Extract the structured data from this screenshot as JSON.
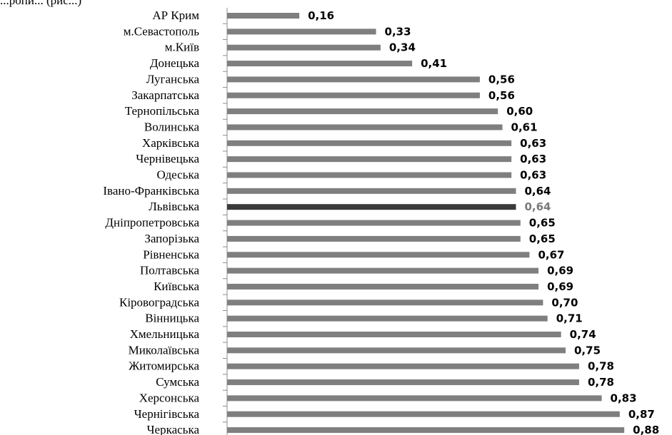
{
  "header_fragment": "...ропи... (рис...)",
  "chart_data": {
    "type": "bar",
    "orientation": "horizontal",
    "title": "",
    "xlabel": "",
    "ylabel": "",
    "xlim": [
      0,
      1
    ],
    "grid": false,
    "highlight_category": "Львівська",
    "colors": {
      "bar": "#7f7f7f",
      "bar_highlight": "#3a3a3a",
      "value_highlight": "#7a7a7a",
      "axis": "#8c8c8c"
    },
    "categories": [
      "АР Крим",
      "м.Севастополь",
      "м.Київ",
      "Донецька",
      "Луганська",
      "Закарпатська",
      "Тернопільська",
      "Волинська",
      "Харківська",
      "Чернівецька",
      "Одеська",
      "Івано-Франківська",
      "Львівська",
      "Дніпропетровська",
      "Запорізька",
      "Рівненська",
      "Полтавська",
      "Київська",
      "Кіровоградська",
      "Вінницька",
      "Хмельницька",
      "Миколаївська",
      "Житомирська",
      "Сумська",
      "Херсонська",
      "Чернігівська",
      "Черкаська"
    ],
    "values": [
      0.16,
      0.33,
      0.34,
      0.41,
      0.56,
      0.56,
      0.6,
      0.61,
      0.63,
      0.63,
      0.63,
      0.64,
      0.64,
      0.65,
      0.65,
      0.67,
      0.69,
      0.69,
      0.7,
      0.71,
      0.74,
      0.75,
      0.78,
      0.78,
      0.83,
      0.87,
      0.88
    ],
    "value_labels": [
      "0,16",
      "0,33",
      "0,34",
      "0,41",
      "0,56",
      "0,56",
      "0,60",
      "0,61",
      "0,63",
      "0,63",
      "0,63",
      "0,64",
      "0,64",
      "0,65",
      "0,65",
      "0,67",
      "0,69",
      "0,69",
      "0,70",
      "0,71",
      "0,74",
      "0,75",
      "0,78",
      "0,78",
      "0,83",
      "0,87",
      "0,88"
    ]
  }
}
